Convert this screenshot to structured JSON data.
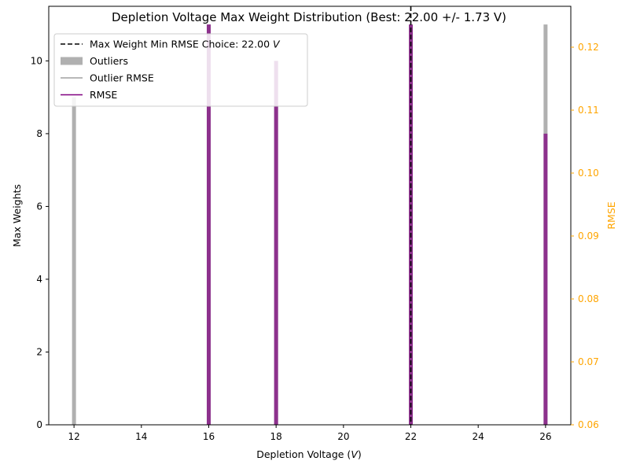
{
  "chart_data": {
    "type": "bar",
    "title": "Depletion Voltage Max Weight Distribution (Best: 22.00 +/- 1.73 V)",
    "xlabel": "Depletion Voltage (V)",
    "ylabel": "Max Weights",
    "y2label": "RMSE",
    "xlim": [
      11.25,
      26.75
    ],
    "ylim": [
      0,
      11.5
    ],
    "y2lim": [
      0.06,
      0.1265
    ],
    "xticks": [
      12,
      14,
      16,
      18,
      20,
      22,
      24,
      26
    ],
    "yticks": [
      0,
      2,
      4,
      6,
      8,
      10
    ],
    "y2ticks": [
      0.06,
      0.07,
      0.08,
      0.09,
      0.1,
      0.11,
      0.12
    ],
    "y2tick_labels": [
      "0.06",
      "0.07",
      "0.08",
      "0.09",
      "0.10",
      "0.11",
      "0.12"
    ],
    "series": [
      {
        "name": "Outliers",
        "color": "#b0b0b0",
        "x": [
          12,
          16,
          18,
          22,
          26
        ],
        "values": [
          9,
          11,
          10,
          11,
          11
        ]
      },
      {
        "name": "RMSE",
        "color": "#800080",
        "x": [
          12,
          16,
          18,
          22,
          26
        ],
        "values": [
          0,
          11,
          10,
          11,
          8
        ]
      }
    ],
    "best_line": {
      "x": 22,
      "label": "Max Weight Min RMSE Choice: 22.00 V"
    },
    "legend": {
      "position": "top-left",
      "entries": [
        {
          "label": "Max Weight Min RMSE Choice: 22.00 V",
          "kind": "dashed-line",
          "color": "#000000"
        },
        {
          "label": "Outliers",
          "kind": "patch",
          "color": "#b0b0b0"
        },
        {
          "label": "Outlier RMSE",
          "kind": "line",
          "color": "#a0a0a0"
        },
        {
          "label": "RMSE",
          "kind": "line",
          "color": "#800080"
        }
      ]
    },
    "right_axis_color": "#FFA500",
    "grid": false
  }
}
